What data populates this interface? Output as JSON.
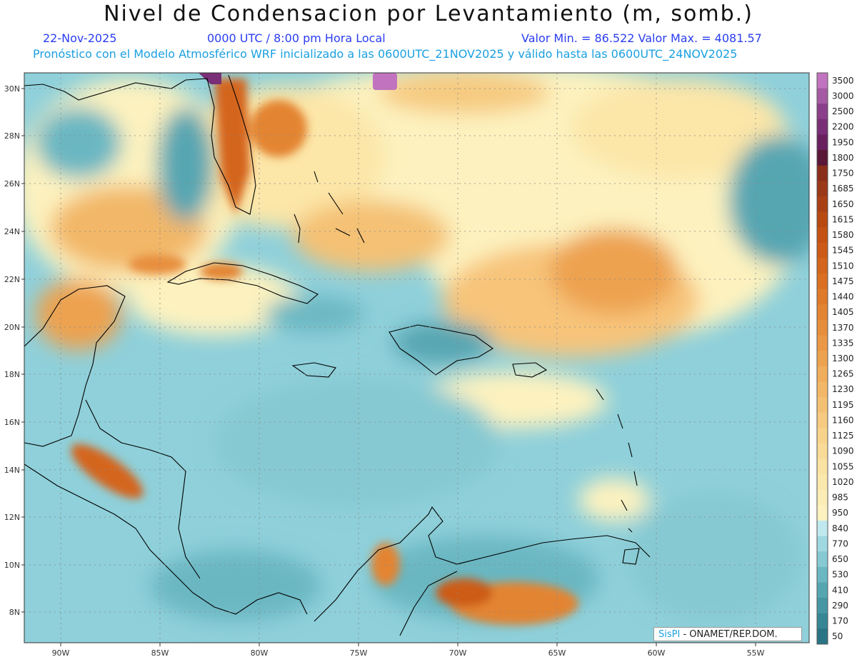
{
  "header": {
    "title": "Nivel de Condensacion por Levantamiento (m, somb.)",
    "date": "22-Nov-2025",
    "time": "0000 UTC / 8:00 pm Hora Local",
    "minmax": "Valor Min. = 86.522   Valor Max. = 4081.57",
    "forecast": "Pronóstico con el Modelo Atmosférico WRF inicializado a las 0600UTC_21NOV2025 y válido hasta las  0600UTC_24NOV2025"
  },
  "axes": {
    "lat_labels": [
      "30N",
      "28N",
      "26N",
      "24N",
      "22N",
      "20N",
      "18N",
      "16N",
      "14N",
      "12N",
      "10N",
      "8N"
    ],
    "lon_labels": [
      "90W",
      "85W",
      "80W",
      "75W",
      "70W",
      "65W",
      "60W",
      "55W"
    ]
  },
  "colorbar": {
    "labels": [
      "3500",
      "3000",
      "2500",
      "2200",
      "1950",
      "1800",
      "1750",
      "1685",
      "1650",
      "1615",
      "1580",
      "1545",
      "1510",
      "1475",
      "1440",
      "1405",
      "1370",
      "1335",
      "1300",
      "1265",
      "1230",
      "1195",
      "1160",
      "1125",
      "1090",
      "1055",
      "1020",
      "985",
      "950",
      "840",
      "770",
      "650",
      "530",
      "410",
      "290",
      "170",
      "50"
    ],
    "colors": [
      "#c273bf",
      "#a65aa3",
      "#8c3f8a",
      "#7a2e77",
      "#6a1f5e",
      "#5a1738",
      "#8a2e1a",
      "#9a3818",
      "#a94015",
      "#b84913",
      "#c45214",
      "#cc5b17",
      "#d4651c",
      "#da6f22",
      "#df7a2a",
      "#e38433",
      "#e78e3c",
      "#ea9846",
      "#eda250",
      "#f0ad5c",
      "#f2b768",
      "#f4c174",
      "#f6ca80",
      "#f8d38c",
      "#f9db98",
      "#fae2a3",
      "#fbe8ad",
      "#fcedb6",
      "#fdf2bf",
      "#bfe9ef",
      "#9fd8e0",
      "#86c9d2",
      "#6bb7c2",
      "#56a6b2",
      "#4696a3",
      "#378694",
      "#2a7585"
    ]
  },
  "credit": {
    "brand": "SisPI",
    "text": " - ONAMET/REP.DOM."
  }
}
